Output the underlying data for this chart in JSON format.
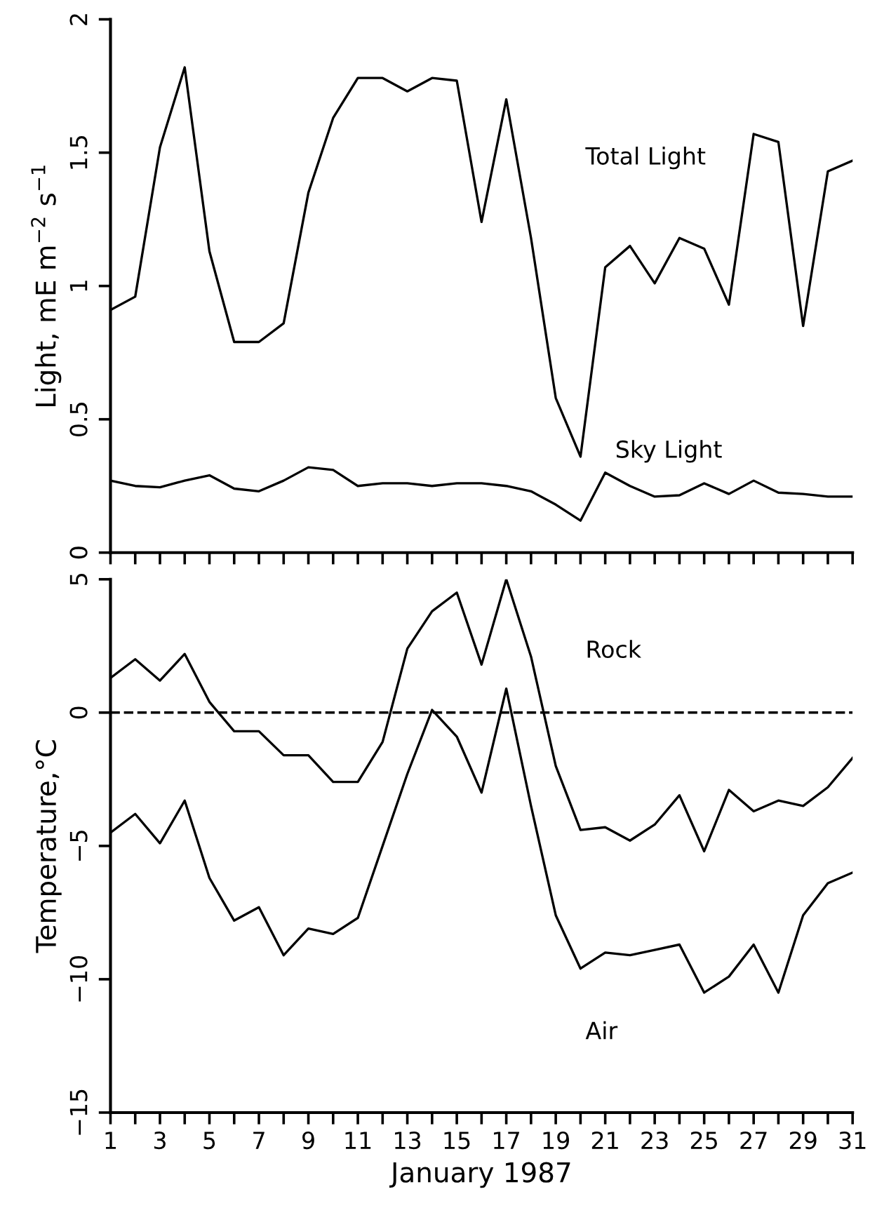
{
  "chart_data": [
    {
      "type": "line",
      "ylabel": "Light, mE m$^{−2}$ s$^{−1}$",
      "x": [
        1,
        2,
        3,
        4,
        5,
        6,
        7,
        8,
        9,
        10,
        11,
        12,
        13,
        14,
        15,
        16,
        17,
        18,
        19,
        20,
        21,
        22,
        23,
        24,
        25,
        26,
        27,
        28,
        29,
        30,
        31
      ],
      "series": [
        {
          "name": "Total Light",
          "color": "#000000",
          "values": [
            0.91,
            0.96,
            1.52,
            1.82,
            1.13,
            0.79,
            0.79,
            0.86,
            1.35,
            1.63,
            1.78,
            1.78,
            1.73,
            1.78,
            1.77,
            1.24,
            1.7,
            1.18,
            0.58,
            0.36,
            1.07,
            1.15,
            1.01,
            1.18,
            1.14,
            0.93,
            1.57,
            1.54,
            0.85,
            1.43,
            1.47
          ]
        },
        {
          "name": "Sky Light",
          "color": "#000000",
          "values": [
            0.27,
            0.25,
            0.245,
            0.27,
            0.29,
            0.24,
            0.23,
            0.27,
            0.32,
            0.31,
            0.25,
            0.26,
            0.26,
            0.25,
            0.26,
            0.26,
            0.25,
            0.23,
            0.18,
            0.12,
            0.3,
            0.25,
            0.21,
            0.215,
            0.26,
            0.22,
            0.27,
            0.225,
            0.22,
            0.21,
            0.21
          ]
        }
      ],
      "xlim": [
        1,
        31
      ],
      "ylim": [
        0,
        2
      ],
      "yticks": [
        0,
        0.5,
        1,
        1.5,
        2
      ],
      "xticks": [
        1,
        {
          "value": 2,
          "label": null
        },
        3,
        {
          "value": 4,
          "label": null
        },
        5,
        {
          "value": 6,
          "label": null
        },
        7,
        {
          "value": 8,
          "label": null
        },
        9,
        {
          "value": 10,
          "label": null
        },
        11,
        {
          "value": 12,
          "label": null
        },
        13,
        {
          "value": 14,
          "label": null
        },
        15,
        {
          "value": 16,
          "label": null
        },
        17,
        {
          "value": 18,
          "label": null
        },
        19,
        {
          "value": 20,
          "label": null
        },
        21,
        {
          "value": 22,
          "label": null
        },
        23,
        {
          "value": 24,
          "label": null
        },
        25,
        {
          "value": 26,
          "label": null
        },
        27,
        {
          "value": 28,
          "label": null
        },
        29,
        {
          "value": 30,
          "label": null
        },
        31
      ],
      "tick_labels": "y",
      "grid": false,
      "legend": false,
      "marker": "none",
      "line_style": "solid"
    },
    {
      "type": "line",
      "xlabel": "January 1987",
      "ylabel": "Temperature,°C",
      "x": [
        1,
        2,
        3,
        4,
        5,
        6,
        7,
        8,
        9,
        10,
        11,
        12,
        13,
        14,
        15,
        16,
        17,
        18,
        19,
        20,
        21,
        22,
        23,
        24,
        25,
        26,
        27,
        28,
        29,
        30,
        31
      ],
      "series": [
        {
          "name": "Rock",
          "color": "#000000",
          "values": [
            1.3,
            2.0,
            1.2,
            2.2,
            0.4,
            -0.7,
            -0.7,
            -1.6,
            -1.6,
            -2.6,
            -2.6,
            -1.1,
            2.4,
            3.8,
            4.5,
            1.8,
            5.0,
            2.1,
            -2.0,
            -4.4,
            -4.3,
            -4.8,
            -4.2,
            -3.1,
            -5.2,
            -2.9,
            -3.7,
            -3.3,
            -3.5,
            -2.8,
            -1.7
          ]
        },
        {
          "name": "Air",
          "color": "#000000",
          "values": [
            -4.5,
            -3.8,
            -4.9,
            -3.3,
            -6.2,
            -7.8,
            -7.3,
            -9.1,
            -8.1,
            -8.3,
            -7.7,
            -5.0,
            -2.3,
            0.1,
            -0.9,
            -3.0,
            0.9,
            -3.5,
            -7.6,
            -9.6,
            -9.0,
            -9.1,
            -8.9,
            -8.7,
            -10.5,
            -9.9,
            -8.7,
            -10.5,
            -7.6,
            -6.4,
            -6.0
          ]
        }
      ],
      "ref_lines": [
        {
          "axis": "y",
          "value": 0,
          "line_style": "dashed",
          "color": "#000000"
        }
      ],
      "xlim": [
        1,
        31
      ],
      "ylim": [
        -15,
        5
      ],
      "yticks": [
        {
          "value": -15,
          "label": "−15"
        },
        {
          "value": -10,
          "label": "−10"
        },
        {
          "value": -5,
          "label": "−5"
        },
        0,
        5
      ],
      "xticks": [
        1,
        {
          "value": 2,
          "label": null
        },
        3,
        {
          "value": 4,
          "label": null
        },
        5,
        {
          "value": 6,
          "label": null
        },
        7,
        {
          "value": 8,
          "label": null
        },
        9,
        {
          "value": 10,
          "label": null
        },
        11,
        {
          "value": 12,
          "label": null
        },
        13,
        {
          "value": 14,
          "label": null
        },
        15,
        {
          "value": 16,
          "label": null
        },
        17,
        {
          "value": 18,
          "label": null
        },
        19,
        {
          "value": 20,
          "label": null
        },
        21,
        {
          "value": 22,
          "label": null
        },
        23,
        {
          "value": 24,
          "label": null
        },
        25,
        {
          "value": 26,
          "label": null
        },
        27,
        {
          "value": 28,
          "label": null
        },
        29,
        {
          "value": 30,
          "label": null
        },
        31
      ],
      "grid": false,
      "legend": false,
      "marker": "none",
      "line_style": "solid"
    }
  ]
}
